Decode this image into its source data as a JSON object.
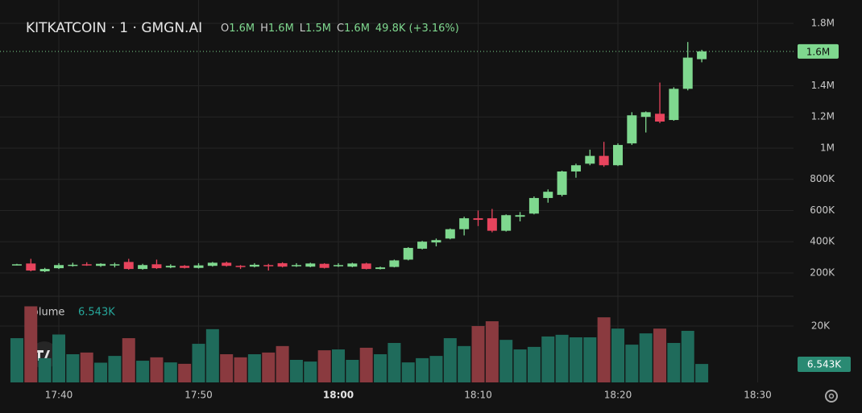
{
  "chart_data": {
    "type": "candlestick",
    "title": "KITKATCOIN · 1 · GMGN.AI",
    "ohlc_legend": [
      [
        "O",
        "1.6M"
      ],
      [
        "H",
        "1.6M"
      ],
      [
        "L",
        "1.5M"
      ],
      [
        "C",
        "1.6M"
      ]
    ],
    "change": "49.8K (+3.16%)",
    "volume_title": "Volume",
    "x": [
      "17:37",
      "17:38",
      "17:39",
      "17:40",
      "17:41",
      "17:42",
      "17:43",
      "17:44",
      "17:45",
      "17:46",
      "17:47",
      "17:48",
      "17:49",
      "17:50",
      "17:51",
      "17:52",
      "17:53",
      "17:54",
      "17:55",
      "17:56",
      "17:57",
      "17:58",
      "17:59",
      "18:00",
      "18:01",
      "18:02",
      "18:03",
      "18:04",
      "18:05",
      "18:06",
      "18:07",
      "18:08",
      "18:09",
      "18:10",
      "18:11",
      "18:12",
      "18:13",
      "18:14",
      "18:15",
      "18:16",
      "18:17",
      "18:18",
      "18:19",
      "18:20",
      "18:21",
      "18:22",
      "18:23",
      "18:24",
      "18:25",
      "18:26"
    ],
    "open": [
      250000,
      260000,
      210000,
      230000,
      248000,
      255000,
      245000,
      250000,
      270000,
      225000,
      255000,
      235000,
      245000,
      232000,
      245000,
      265000,
      245000,
      240000,
      250000,
      262000,
      245000,
      240000,
      258000,
      245000,
      240000,
      260000,
      225000,
      238000,
      285000,
      355000,
      395000,
      420000,
      480000,
      550000,
      550000,
      470000,
      560000,
      580000,
      680000,
      700000,
      850000,
      900000,
      950000,
      890000,
      1030000,
      1200000,
      1220000,
      1180000,
      1380000,
      1570000
    ],
    "high": [
      258000,
      290000,
      232000,
      262000,
      265000,
      268000,
      262000,
      265000,
      290000,
      258000,
      285000,
      255000,
      250000,
      262000,
      270000,
      272000,
      250000,
      262000,
      258000,
      268000,
      262000,
      265000,
      262000,
      262000,
      265000,
      265000,
      240000,
      285000,
      365000,
      405000,
      420000,
      485000,
      560000,
      600000,
      610000,
      575000,
      590000,
      690000,
      735000,
      855000,
      900000,
      990000,
      1040000,
      1030000,
      1230000,
      1235000,
      1420000,
      1390000,
      1680000,
      1630000
    ],
    "low": [
      248000,
      210000,
      205000,
      225000,
      240000,
      245000,
      238000,
      235000,
      220000,
      220000,
      225000,
      230000,
      228000,
      228000,
      240000,
      240000,
      225000,
      235000,
      215000,
      235000,
      238000,
      236000,
      228000,
      238000,
      236000,
      222000,
      222000,
      235000,
      280000,
      350000,
      370000,
      415000,
      440000,
      500000,
      460000,
      465000,
      530000,
      575000,
      650000,
      690000,
      810000,
      890000,
      880000,
      885000,
      1020000,
      1100000,
      1160000,
      1175000,
      1370000,
      1550000
    ],
    "close": [
      255000,
      215000,
      225000,
      250000,
      252000,
      250000,
      258000,
      255000,
      225000,
      250000,
      230000,
      245000,
      232000,
      248000,
      265000,
      245000,
      238000,
      252000,
      245000,
      240000,
      250000,
      260000,
      232000,
      250000,
      260000,
      225000,
      235000,
      280000,
      360000,
      400000,
      410000,
      480000,
      550000,
      540000,
      470000,
      570000,
      570000,
      680000,
      720000,
      850000,
      890000,
      950000,
      890000,
      1020000,
      1210000,
      1230000,
      1170000,
      1380000,
      1580000,
      1620000
    ],
    "volume": [
      15700,
      27000,
      8600,
      17000,
      10000,
      10600,
      7000,
      9400,
      15700,
      7700,
      8900,
      7100,
      6600,
      13700,
      18900,
      10000,
      8900,
      10000,
      10600,
      12900,
      8000,
      7400,
      11400,
      11700,
      8000,
      12300,
      10000,
      14000,
      7100,
      8600,
      9400,
      15700,
      12900,
      20000,
      21700,
      15100,
      11700,
      12600,
      16300,
      16900,
      16000,
      16000,
      23100,
      19100,
      13400,
      17400,
      19100,
      14000,
      18300,
      6543
    ],
    "up_color": "#7fd88f",
    "down_color": "#e8445d",
    "volume_up_color": "#1f6b5b",
    "volume_down_color": "#8a3a3f",
    "xlim": [
      "17:36",
      "18:32"
    ],
    "xticks": [
      "17:40",
      "17:50",
      "18:00",
      "18:10",
      "18:20",
      "18:30"
    ],
    "ylim": [
      50000,
      1890000
    ],
    "yticks": [
      {
        "value": 200000,
        "label": "200K"
      },
      {
        "value": 400000,
        "label": "400K"
      },
      {
        "value": 600000,
        "label": "600K"
      },
      {
        "value": 800000,
        "label": "800K"
      },
      {
        "value": 1000000,
        "label": "1M"
      },
      {
        "value": 1200000,
        "label": "1.2M"
      },
      {
        "value": 1400000,
        "label": "1.4M"
      },
      {
        "value": 1800000,
        "label": "1.8M"
      }
    ],
    "last_price": {
      "value": 1620000,
      "label": "1.6M"
    },
    "volume_ylim": [
      0,
      30000
    ],
    "volume_yticks": [
      {
        "value": 20000,
        "label": "20K"
      }
    ],
    "volume_label": {
      "value": 6543,
      "label": "6.543K"
    },
    "grid": true
  }
}
